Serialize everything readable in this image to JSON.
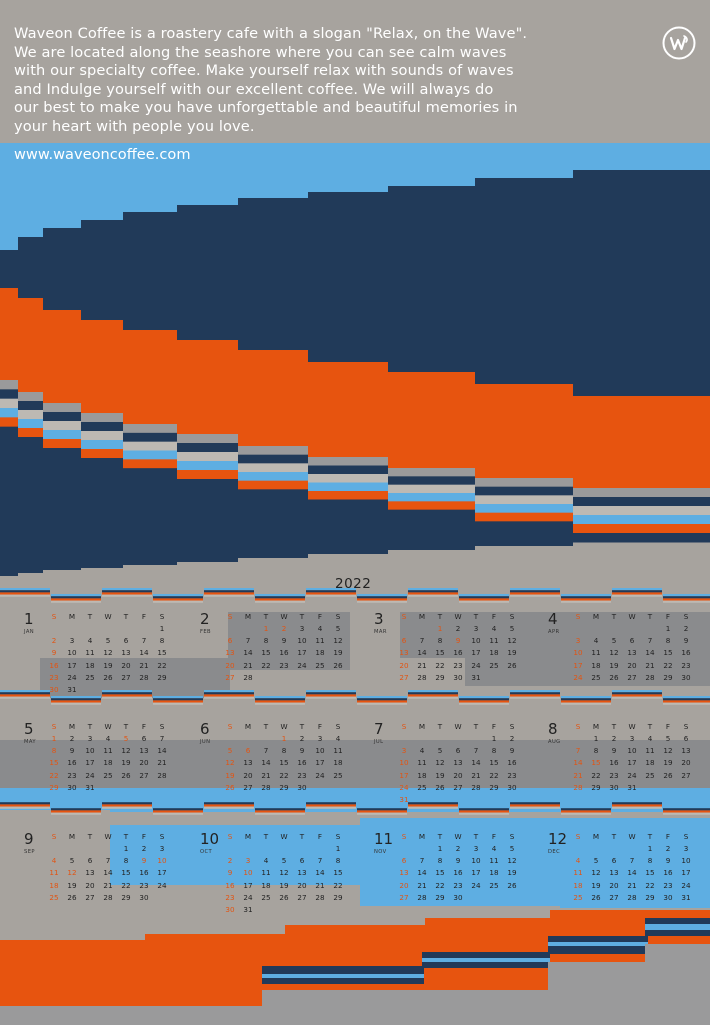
{
  "intro_lines": [
    "Waveon Coffee is a roastery cafe with a slogan \"Relax, on the Wave\".",
    "We are located along the seashore where you can see calm waves",
    "with our specialty coffee. Make yourself relax with sounds of waves",
    "and Indulge yourself with our excellent coffee. We will always do",
    "our best to make you have unforgettable and beautiful memories in",
    "your heart with people you love."
  ],
  "website": "www.waveoncoffee.com",
  "logo_icon": "waveon-w-logo-icon",
  "year": "2022",
  "weekdays": [
    "S",
    "M",
    "T",
    "W",
    "T",
    "F",
    "S"
  ],
  "colors": {
    "sky": "#5eaee2",
    "navy": "#213a59",
    "orange": "#e7540f",
    "warm_gray": "#a7a39e",
    "dark_gray": "#8a8b8d",
    "mid_gray": "#9a9a9b",
    "light_gray": "#bdb9b3",
    "sunday": "#e25412"
  },
  "months": [
    {
      "num": "1",
      "abbr": "JAN",
      "start": 6,
      "days": 31,
      "holidays": []
    },
    {
      "num": "2",
      "abbr": "FEB",
      "start": 2,
      "days": 28,
      "holidays": [
        1,
        2
      ]
    },
    {
      "num": "3",
      "abbr": "MAR",
      "start": 2,
      "days": 31,
      "holidays": [
        1,
        9
      ]
    },
    {
      "num": "4",
      "abbr": "APR",
      "start": 5,
      "days": 30,
      "holidays": []
    },
    {
      "num": "5",
      "abbr": "MAY",
      "start": 0,
      "days": 31,
      "holidays": [
        5
      ]
    },
    {
      "num": "6",
      "abbr": "JUN",
      "start": 3,
      "days": 30,
      "holidays": [
        1,
        6
      ]
    },
    {
      "num": "7",
      "abbr": "JUL",
      "start": 5,
      "days": 31,
      "holidays": []
    },
    {
      "num": "8",
      "abbr": "AUG",
      "start": 1,
      "days": 31,
      "holidays": [
        15
      ]
    },
    {
      "num": "9",
      "abbr": "SEP",
      "start": 4,
      "days": 30,
      "holidays": [
        9,
        10,
        12
      ]
    },
    {
      "num": "10",
      "abbr": "OCT",
      "start": 6,
      "days": 31,
      "holidays": [
        3,
        10
      ]
    },
    {
      "num": "11",
      "abbr": "NOV",
      "start": 2,
      "days": 30,
      "holidays": []
    },
    {
      "num": "12",
      "abbr": "DEC",
      "start": 4,
      "days": 31,
      "holidays": []
    }
  ]
}
